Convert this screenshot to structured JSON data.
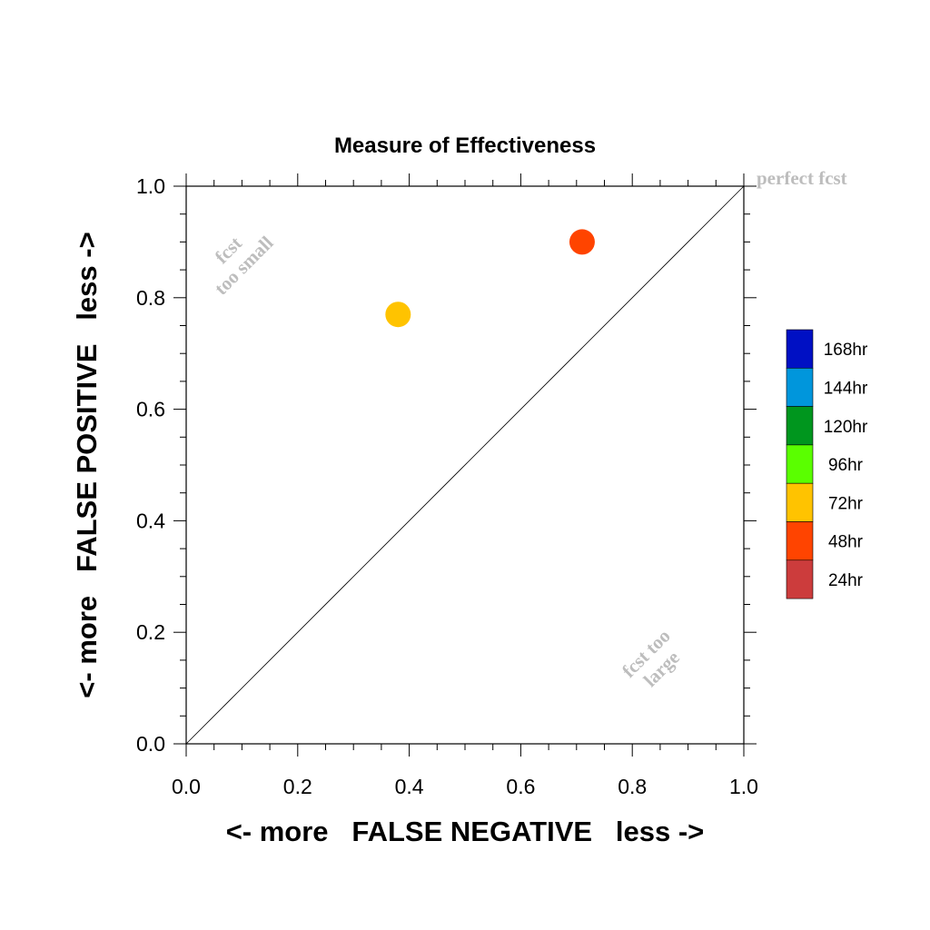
{
  "chart_data": {
    "type": "scatter",
    "title": "Measure of Effectiveness",
    "xlabel": "<- more   FALSE NEGATIVE   less ->",
    "ylabel": "<- more   FALSE POSITIVE   less ->",
    "xlim": [
      0,
      1
    ],
    "ylim": [
      0,
      1
    ],
    "xticks": [
      "0.0",
      "0.2",
      "0.4",
      "0.6",
      "0.8",
      "1.0"
    ],
    "yticks": [
      "0.0",
      "0.2",
      "0.4",
      "0.6",
      "0.8",
      "1.0"
    ],
    "grid": false,
    "diagonal_line": true,
    "points": [
      {
        "x": 0.38,
        "y": 0.77,
        "lead": "72hr",
        "color": "#ffc300"
      },
      {
        "x": 0.71,
        "y": 0.9,
        "lead": "48hr",
        "color": "#ff4400"
      }
    ],
    "annotations": {
      "perfect": "perfect fcst",
      "small_1": "fcst",
      "small_2": "too small",
      "large_1": "fcst too",
      "large_2": "large"
    },
    "legend": {
      "position": "right",
      "entries": [
        {
          "label": "168hr",
          "color": "#0010c4"
        },
        {
          "label": "144hr",
          "color": "#0096dc"
        },
        {
          "label": "120hr",
          "color": "#00961e"
        },
        {
          "label": "96hr",
          "color": "#5aff00"
        },
        {
          "label": "72hr",
          "color": "#ffc300"
        },
        {
          "label": "48hr",
          "color": "#ff4400"
        },
        {
          "label": "24hr",
          "color": "#cc3c3c"
        }
      ]
    }
  }
}
